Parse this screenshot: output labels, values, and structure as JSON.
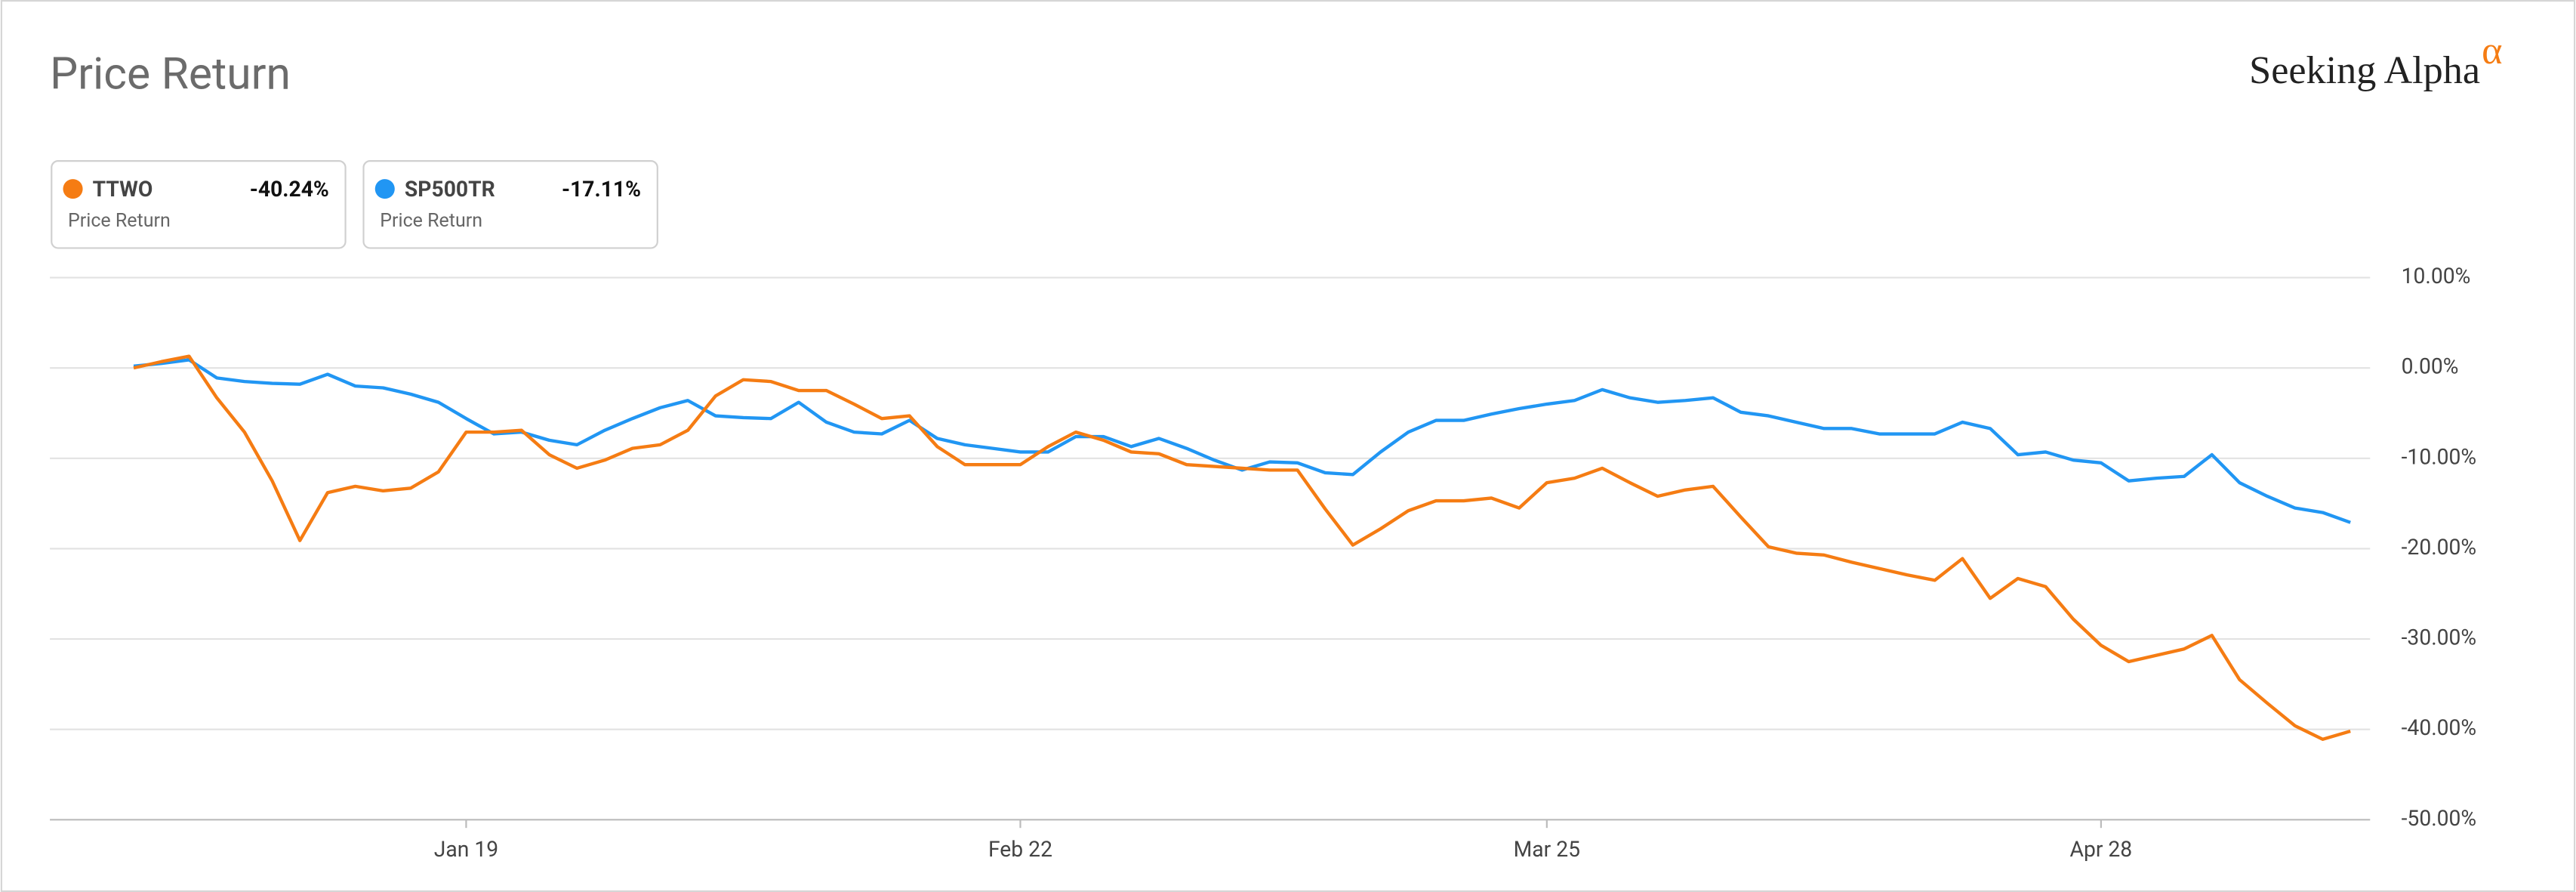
{
  "chart_data": {
    "type": "line",
    "title": "Price Return",
    "brand": "Seeking Alpha",
    "brand_mark": "α",
    "categories": [
      null,
      null,
      null,
      null,
      null,
      null,
      null,
      null,
      null,
      null,
      null,
      null,
      "Jan 19",
      null,
      null,
      null,
      null,
      null,
      null,
      null,
      null,
      null,
      null,
      null,
      null,
      null,
      null,
      null,
      null,
      null,
      null,
      null,
      "Feb 22",
      null,
      null,
      null,
      null,
      null,
      null,
      null,
      null,
      null,
      null,
      null,
      null,
      null,
      null,
      null,
      null,
      null,
      null,
      "Mar 25",
      null,
      null,
      null,
      null,
      null,
      null,
      null,
      null,
      null,
      null,
      null,
      null,
      null,
      null,
      null,
      null,
      null,
      null,
      null,
      "Apr 28",
      null,
      null,
      null,
      null,
      null,
      null,
      null,
      null,
      null
    ],
    "series": [
      {
        "name": "TTWO",
        "color": "#f57c13",
        "legend_value": "-40.24%",
        "legend_label": "Price Return",
        "values": [
          0,
          0.7,
          1.3,
          -3.3,
          -7.1,
          -12.5,
          -19.1,
          -13.8,
          -13.1,
          -13.6,
          -13.3,
          -11.5,
          -7.1,
          -7.1,
          -6.9,
          -9.6,
          -11.1,
          -10.2,
          -8.9,
          -8.5,
          -6.9,
          -3.1,
          -1.3,
          -1.5,
          -2.5,
          -2.5,
          -4.0,
          -5.6,
          -5.3,
          -8.7,
          -10.7,
          -10.7,
          -10.7,
          -8.7,
          -7.1,
          -8.0,
          -9.3,
          -9.5,
          -10.7,
          -10.9,
          -11.1,
          -11.3,
          -11.3,
          -15.6,
          -19.6,
          -17.8,
          -15.8,
          -14.7,
          -14.7,
          -14.4,
          -15.5,
          -12.7,
          -12.2,
          -11.1,
          -12.7,
          -14.2,
          -13.5,
          -13.1,
          -16.5,
          -19.8,
          -20.5,
          -20.7,
          -21.5,
          -22.2,
          -22.9,
          -23.5,
          -21.1,
          -25.5,
          -23.3,
          -24.2,
          -27.8,
          -30.7,
          -32.5,
          -31.8,
          -31.1,
          -29.6,
          -34.5,
          -37.1,
          -39.6,
          -41.1,
          -40.2
        ]
      },
      {
        "name": "SP500TR",
        "color": "#2196f3",
        "legend_value": "-17.11%",
        "legend_label": "Price Return",
        "values": [
          0.2,
          0.5,
          0.9,
          -1.1,
          -1.5,
          -1.7,
          -1.8,
          -0.7,
          -2.0,
          -2.2,
          -2.9,
          -3.8,
          -5.6,
          -7.3,
          -7.1,
          -8.0,
          -8.5,
          -6.9,
          -5.6,
          -4.4,
          -3.6,
          -5.3,
          -5.5,
          -5.6,
          -3.8,
          -6.0,
          -7.1,
          -7.3,
          -5.8,
          -7.8,
          -8.5,
          -8.9,
          -9.3,
          -9.3,
          -7.6,
          -7.6,
          -8.7,
          -7.8,
          -8.9,
          -10.2,
          -11.3,
          -10.4,
          -10.5,
          -11.6,
          -11.8,
          -9.3,
          -7.1,
          -5.8,
          -5.8,
          -5.1,
          -4.5,
          -4.0,
          -3.6,
          -2.4,
          -3.3,
          -3.8,
          -3.6,
          -3.3,
          -4.9,
          -5.3,
          -6.0,
          -6.7,
          -6.7,
          -7.3,
          -7.3,
          -7.3,
          -6.0,
          -6.7,
          -9.6,
          -9.3,
          -10.2,
          -10.5,
          -12.5,
          -12.2,
          -12.0,
          -9.6,
          -12.7,
          -14.2,
          -15.5,
          -16.0,
          -17.1
        ]
      }
    ],
    "ylim": [
      -50,
      10
    ],
    "yticks": [
      {
        "value": 10,
        "label": "10.00%"
      },
      {
        "value": 0,
        "label": "0.00%"
      },
      {
        "value": -10,
        "label": "-10.00%"
      },
      {
        "value": -20,
        "label": "-20.00%"
      },
      {
        "value": -30,
        "label": "-30.00%"
      },
      {
        "value": -40,
        "label": "-40.00%"
      },
      {
        "value": -50,
        "label": "-50.00%"
      }
    ],
    "grid": true
  }
}
